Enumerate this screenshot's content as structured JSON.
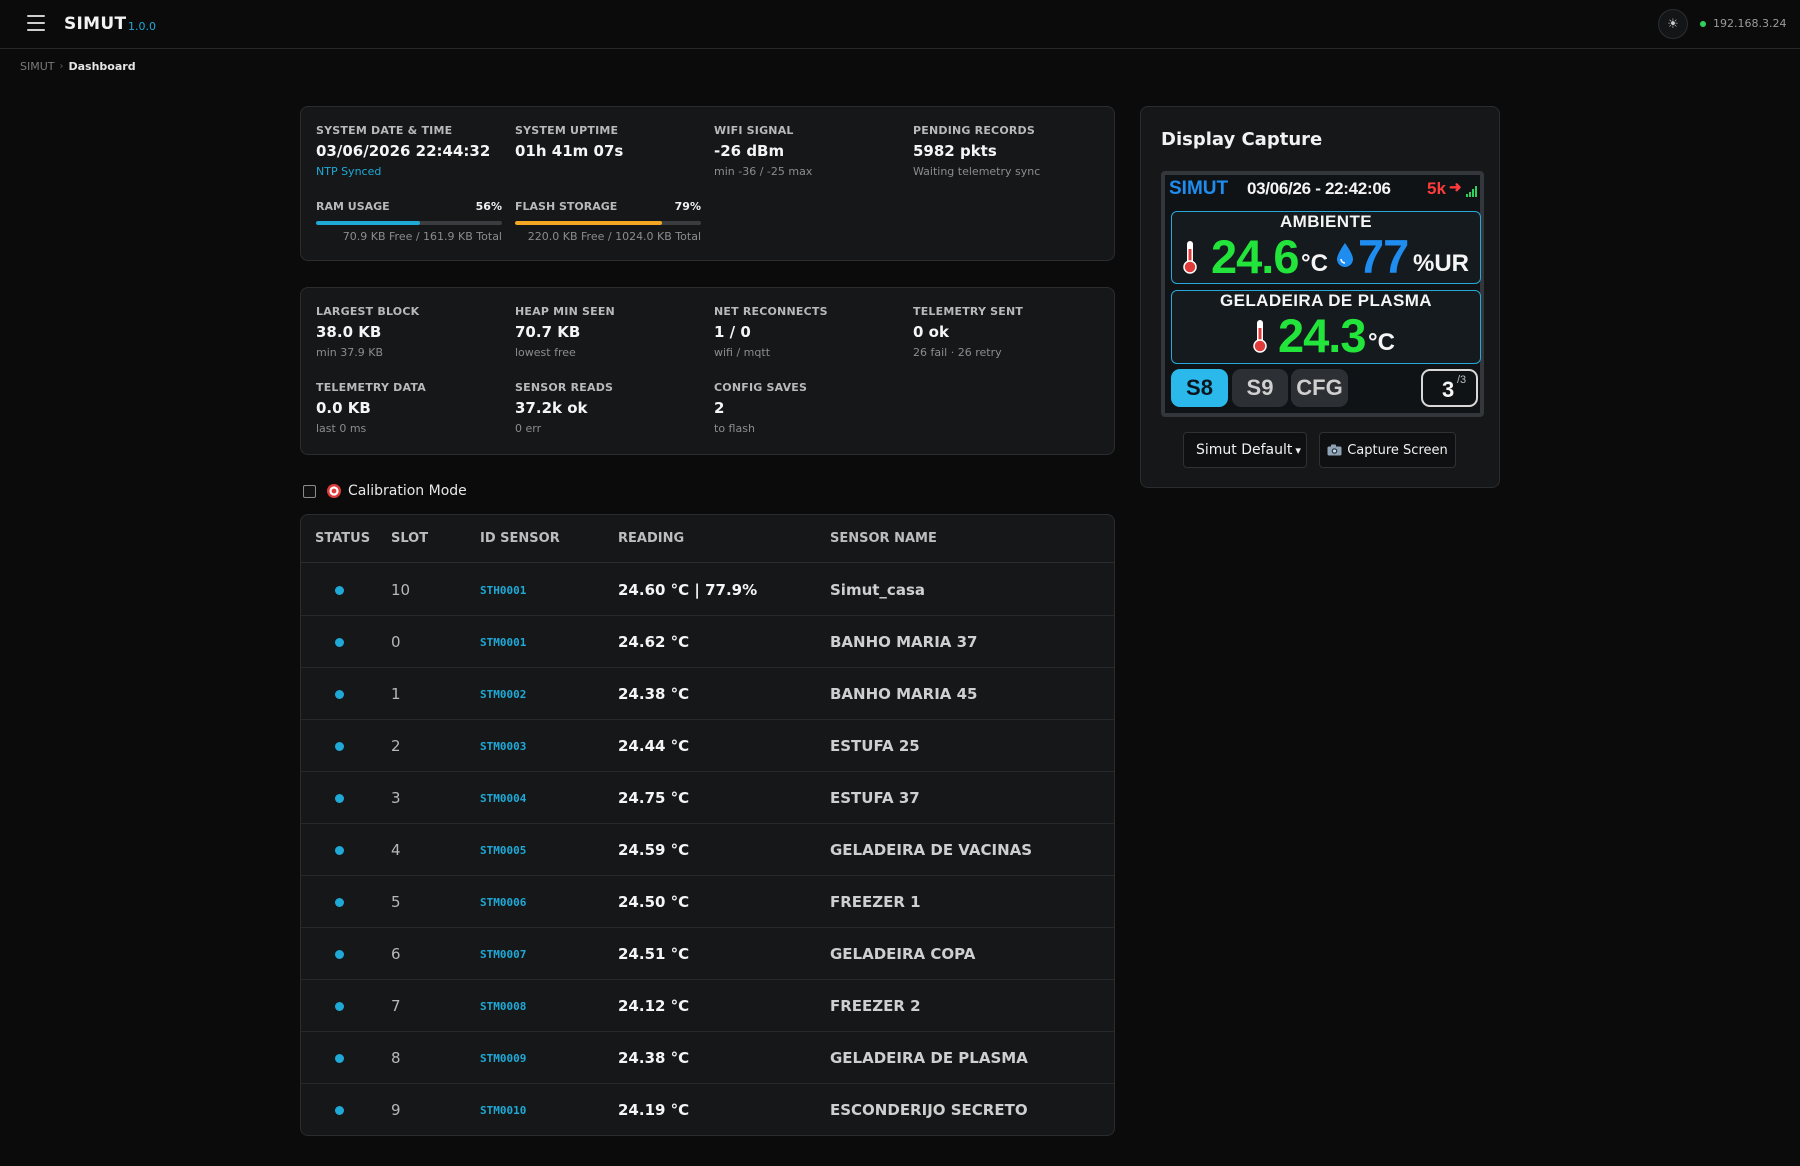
{
  "header": {
    "brand": "SIMUT",
    "version": "1.0.0",
    "ip": "192.168.3.24"
  },
  "breadcrumb": {
    "root": "SIMUT",
    "separator": "›",
    "current": "Dashboard"
  },
  "system": {
    "datetime": {
      "label": "SYSTEM DATE & TIME",
      "value": "03/06/2026 22:44:32",
      "sub": "NTP Synced"
    },
    "uptime": {
      "label": "SYSTEM UPTIME",
      "value": "01h 41m 07s"
    },
    "wifi": {
      "label": "WIFI SIGNAL",
      "value": "-26 dBm",
      "sub": "min -36 / -25 max"
    },
    "pending": {
      "label": "PENDING RECORDS",
      "value": "5982 pkts",
      "sub": "Waiting telemetry sync"
    },
    "ram": {
      "label": "RAM USAGE",
      "percent": "56%",
      "fraction": 0.56,
      "sub": "70.9 KB Free / 161.9 KB Total",
      "color": "#1fa9d6"
    },
    "flash": {
      "label": "FLASH STORAGE",
      "percent": "79%",
      "fraction": 0.79,
      "sub": "220.0 KB Free / 1024.0 KB Total",
      "color": "#f5a623"
    }
  },
  "metrics": {
    "largest_block": {
      "label": "LARGEST BLOCK",
      "value": "38.0 KB",
      "sub": "min 37.9 KB"
    },
    "heap_min": {
      "label": "HEAP MIN SEEN",
      "value": "70.7 KB",
      "sub": "lowest free"
    },
    "net_reconnects": {
      "label": "NET RECONNECTS",
      "value": "1 / 0",
      "sub": "wifi / mqtt"
    },
    "telemetry_sent": {
      "label": "TELEMETRY SENT",
      "value": "0 ok",
      "sub": "26 fail · 26 retry"
    },
    "telemetry_data": {
      "label": "TELEMETRY DATA",
      "value": "0.0 KB",
      "sub": "last 0 ms"
    },
    "sensor_reads": {
      "label": "SENSOR READS",
      "value": "37.2k ok",
      "sub": "0 err"
    },
    "config_saves": {
      "label": "CONFIG SAVES",
      "value": "2",
      "sub": "to flash"
    }
  },
  "calibration": {
    "label": "Calibration Mode",
    "checked": false
  },
  "table": {
    "headers": {
      "status": "STATUS",
      "slot": "SLOT",
      "id": "ID SENSOR",
      "reading": "READING",
      "name": "SENSOR NAME"
    },
    "rows": [
      {
        "slot": "10",
        "id": "STH0001",
        "reading": "24.60 °C | 77.9%",
        "name": "Simut_casa"
      },
      {
        "slot": "0",
        "id": "STM0001",
        "reading": "24.62 °C",
        "name": "BANHO MARIA 37"
      },
      {
        "slot": "1",
        "id": "STM0002",
        "reading": "24.38 °C",
        "name": "BANHO MARIA 45"
      },
      {
        "slot": "2",
        "id": "STM0003",
        "reading": "24.44 °C",
        "name": "ESTUFA 25"
      },
      {
        "slot": "3",
        "id": "STM0004",
        "reading": "24.75 °C",
        "name": "ESTUFA 37"
      },
      {
        "slot": "4",
        "id": "STM0005",
        "reading": "24.59 °C",
        "name": "GELADEIRA DE VACINAS"
      },
      {
        "slot": "5",
        "id": "STM0006",
        "reading": "24.50 °C",
        "name": "FREEZER 1"
      },
      {
        "slot": "6",
        "id": "STM0007",
        "reading": "24.51 °C",
        "name": "GELADEIRA COPA"
      },
      {
        "slot": "7",
        "id": "STM0008",
        "reading": "24.12 °C",
        "name": "FREEZER 2"
      },
      {
        "slot": "8",
        "id": "STM0009",
        "reading": "24.38 °C",
        "name": "GELADEIRA DE PLASMA"
      },
      {
        "slot": "9",
        "id": "STM0010",
        "reading": "24.19 °C",
        "name": "ESCONDERIJO SECRETO"
      }
    ]
  },
  "display_capture": {
    "title": "Display Capture",
    "lcd": {
      "brand": "SIMUT",
      "datetime": "03/06/26 - 22:42:06",
      "pending": "5k",
      "panel1": {
        "title": "AMBIENTE",
        "temp": "24.6",
        "temp_unit": "°C",
        "humidity": "77",
        "humidity_unit": "%UR"
      },
      "panel2": {
        "title": "GELADEIRA DE PLASMA",
        "temp": "24.3",
        "temp_unit": "°C"
      },
      "buttons": [
        "S8",
        "S9",
        "CFG"
      ],
      "page": "3",
      "page_total": "/3"
    },
    "theme_select": "Simut Default",
    "capture_button": "Capture Screen"
  }
}
